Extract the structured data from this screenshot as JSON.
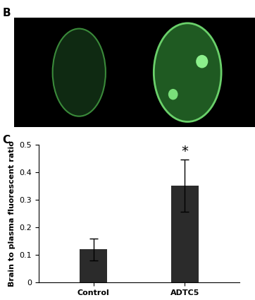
{
  "panel_labels": [
    "B",
    "C"
  ],
  "chart_data": {
    "type": "bar",
    "categories": [
      "Control",
      "ADTC5"
    ],
    "values": [
      0.12,
      0.35
    ],
    "errors": [
      0.04,
      0.095
    ],
    "color": "#2b2b2b",
    "ylabel": "Brain to plasma fluorescent ratio",
    "ylim": [
      0,
      0.5
    ],
    "yticks": [
      0,
      0.1,
      0.2,
      0.3,
      0.4,
      0.5
    ],
    "grid": false,
    "annotations": [
      {
        "text": "*",
        "category": "ADTC5"
      }
    ]
  }
}
